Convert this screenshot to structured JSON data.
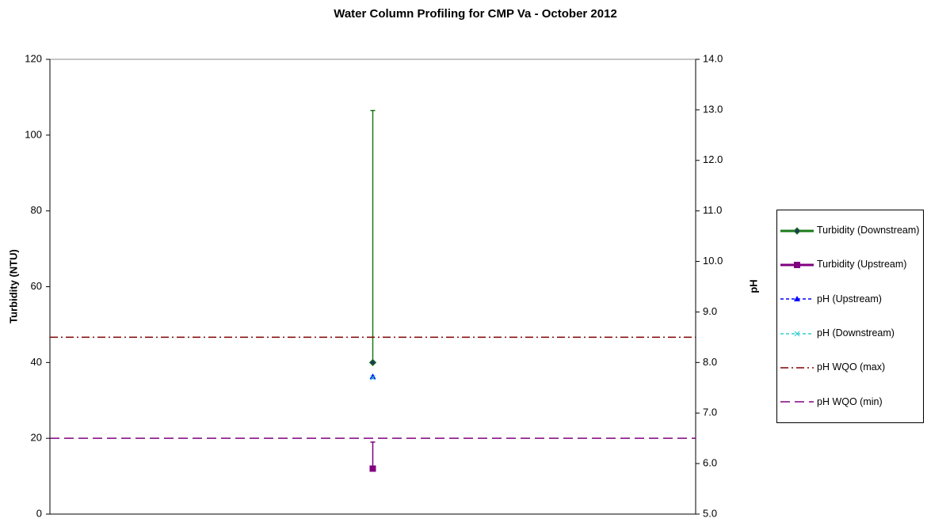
{
  "chart_data": {
    "type": "errorline",
    "title": "Water Column Profiling for CMP Va - October 2012",
    "y_label": "Turbidity (NTU)",
    "y2_label": "pH",
    "categories": [
      null
    ],
    "ylim": [
      0,
      120
    ],
    "yticks": [
      0,
      20,
      40,
      60,
      80,
      100,
      120
    ],
    "y2lim": [
      5,
      14
    ],
    "y2ticks": [
      {
        "value": 5,
        "label": "5.0"
      },
      {
        "value": 6,
        "label": "6.0"
      },
      {
        "value": 7,
        "label": "7.0"
      },
      {
        "value": 8,
        "label": "8.0"
      },
      {
        "value": 9,
        "label": "9.0"
      },
      {
        "value": 10,
        "label": "10.0"
      },
      {
        "value": 11,
        "label": "11.0"
      },
      {
        "value": 12,
        "label": "12.0"
      },
      {
        "value": 13,
        "label": "13.0"
      },
      {
        "value": 14,
        "label": "14.0"
      }
    ],
    "legend": "right",
    "series": [
      {
        "name": "Turbidity (Downstream)",
        "color": "#1a7a1a",
        "marker": "diamond",
        "line_style": "solid",
        "values": [
          40
        ],
        "error_plus": [
          66.5
        ]
      },
      {
        "name": "Turbidity (Upstream)",
        "color": "#800080",
        "marker": "square",
        "line_style": "solid",
        "values": [
          12
        ],
        "error_plus": [
          7
        ]
      },
      {
        "name": "pH (Upstream)",
        "color": "#0000ff",
        "marker": "triangle",
        "line_style": "dashed",
        "axis": "y2",
        "values": [
          7.72
        ]
      },
      {
        "name": "pH (Downstream)",
        "color": "#33cccc",
        "marker": "x",
        "line_style": "dashed",
        "axis": "y2",
        "values": [
          7.7
        ]
      },
      {
        "name": "pH WQO (max)",
        "color": "#800000",
        "marker": "none",
        "line_style": "dashdot",
        "display": "reference-line",
        "axis": "y2",
        "values": [
          8.5
        ]
      },
      {
        "name": "pH WQO (min)",
        "color": "#800080",
        "marker": "none",
        "line_style": "longdash",
        "display": "reference-line",
        "axis": "y2",
        "values": [
          6.5
        ]
      }
    ]
  }
}
